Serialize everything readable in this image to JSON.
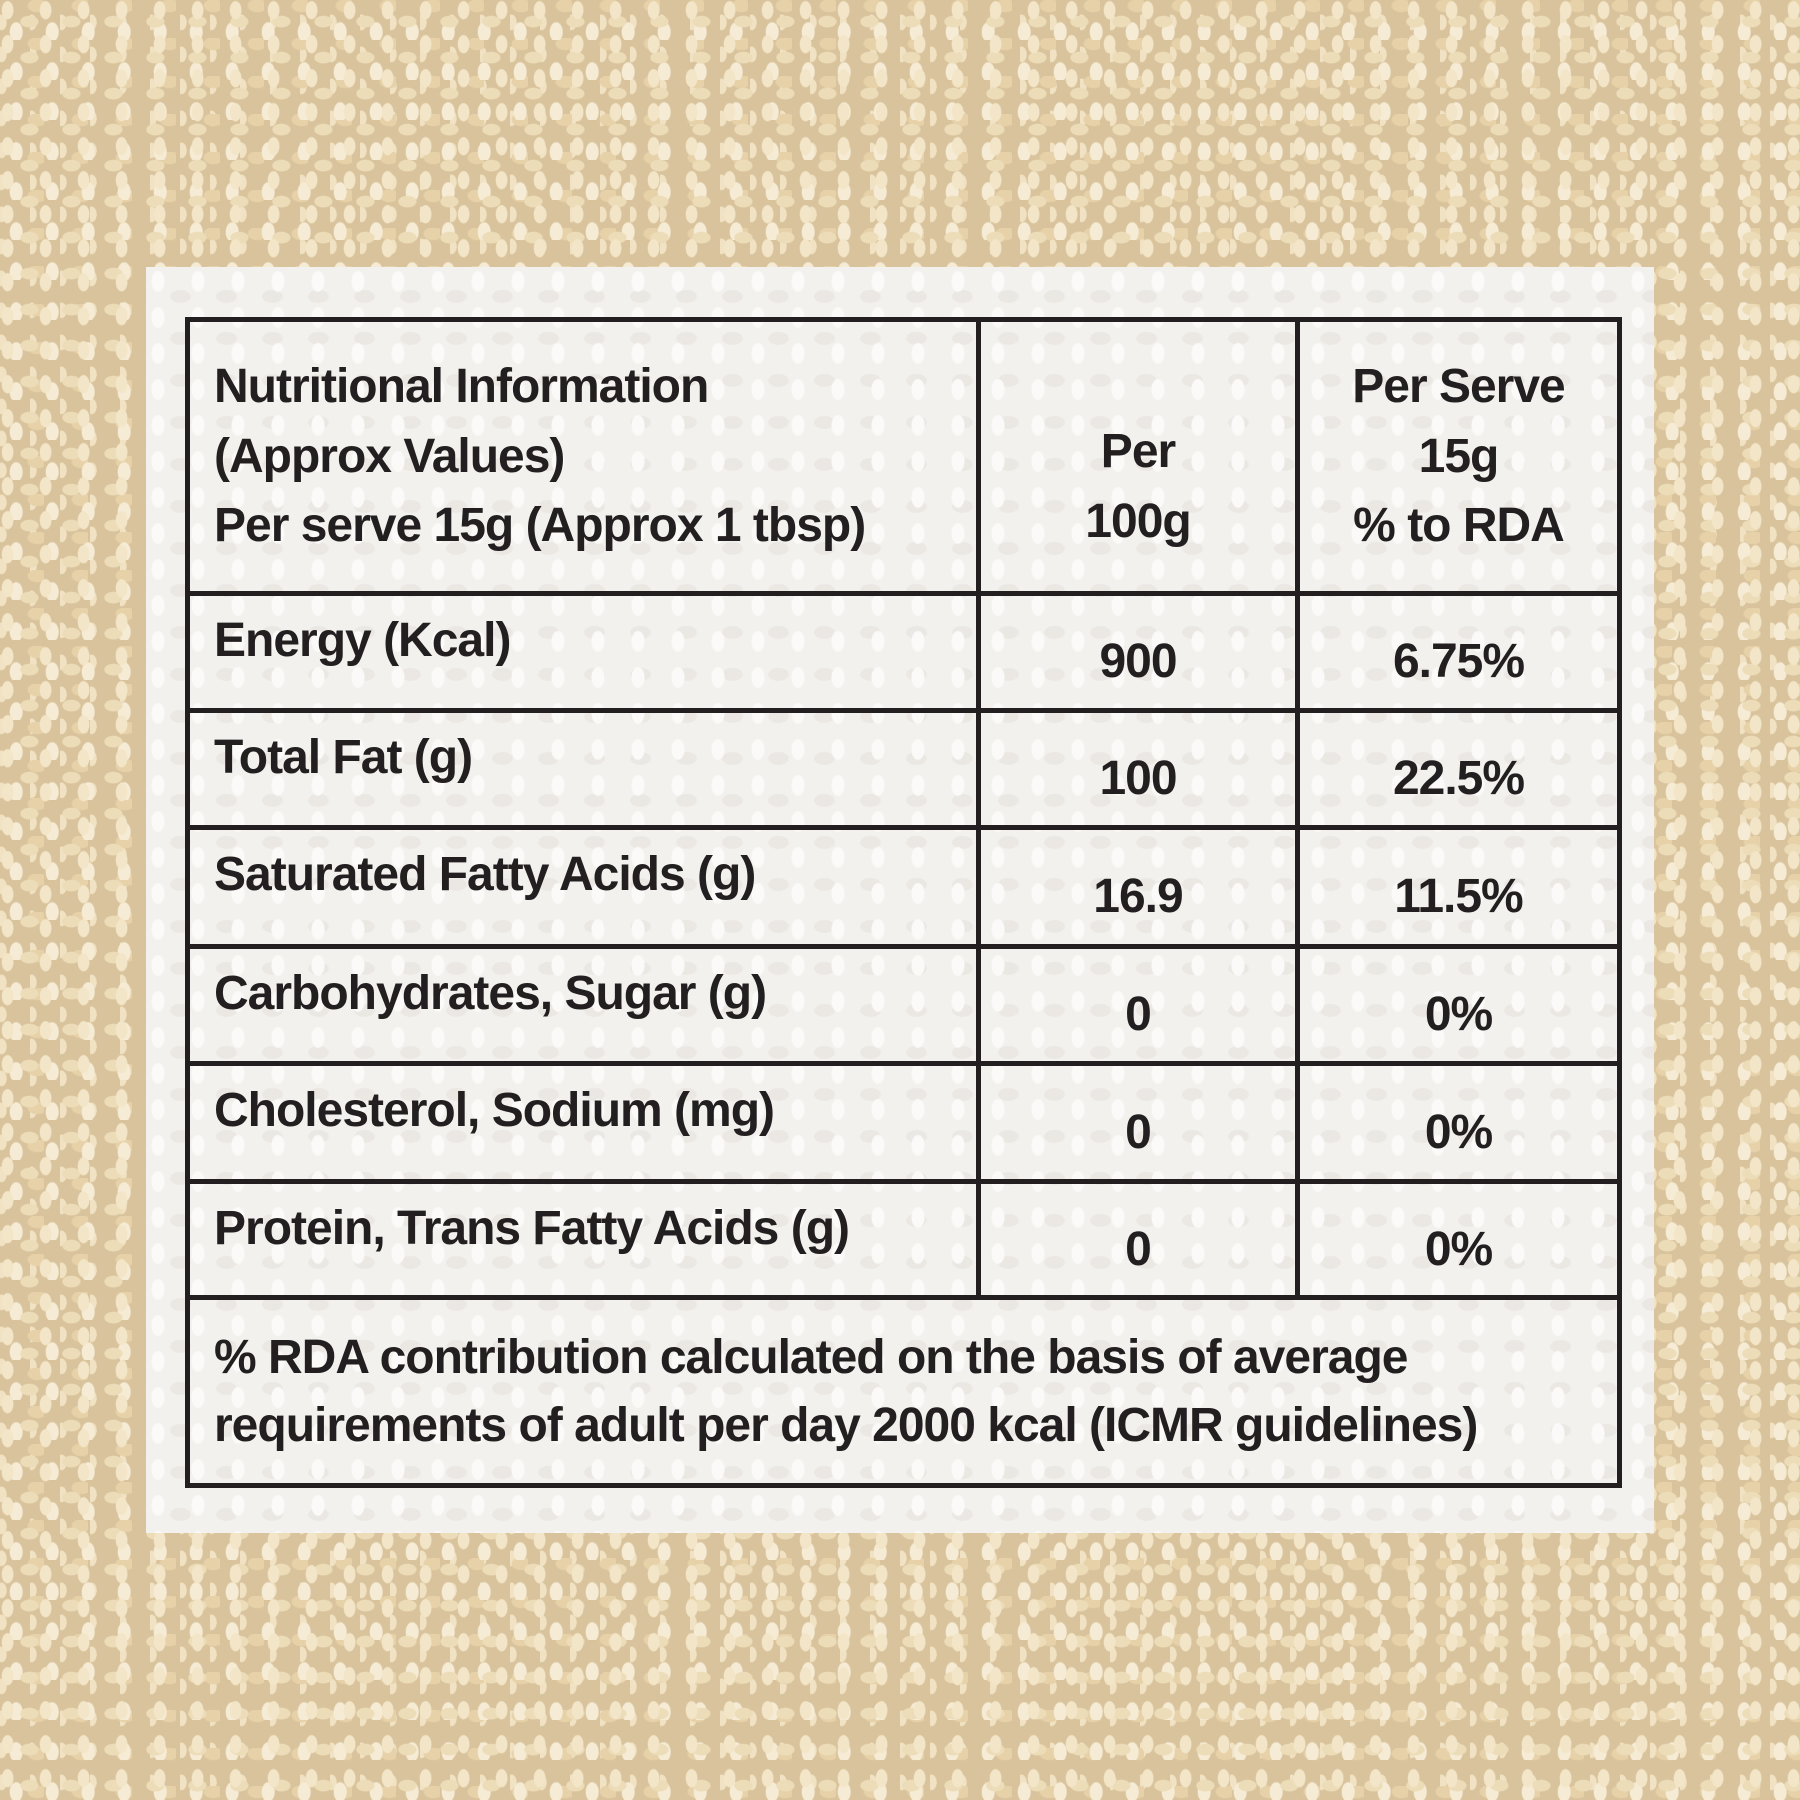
{
  "table": {
    "columns": [
      [
        "Nutritional Information",
        "(Approx Values)",
        "Per serve 15g (Approx 1 tbsp)"
      ],
      [
        "Per",
        "100g"
      ],
      [
        "Per Serve",
        "15g",
        "% to RDA"
      ]
    ],
    "rows": [
      [
        "Energy (Kcal)",
        "900",
        "6.75%"
      ],
      [
        "Total Fat (g)",
        "100",
        "22.5%"
      ],
      [
        "Saturated Fatty Acids (g)",
        "16.9",
        "11.5%"
      ],
      [
        "Carbohydrates, Sugar (g)",
        "0",
        "0%"
      ],
      [
        "Cholesterol, Sodium (mg)",
        "0",
        "0%"
      ],
      [
        "Protein, Trans Fatty Acids (g)",
        "0",
        "0%"
      ]
    ],
    "footnote": [
      "% RDA contribution calculated on the basis of average",
      "requirements of adult per day 2000 kcal (ICMR guidelines)"
    ]
  }
}
